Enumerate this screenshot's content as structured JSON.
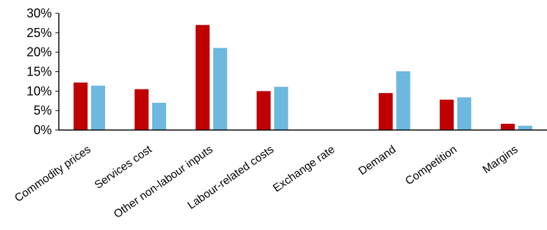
{
  "chart_data": {
    "type": "bar",
    "categories": [
      "Commodity prices",
      "Services cost",
      "Other non-labour inputs",
      "Labour-related costs",
      "Exchange rate",
      "Demand",
      "Competition",
      "Margins"
    ],
    "series": [
      {
        "color": "#c00000",
        "values": [
          12.2,
          10.5,
          27.0,
          10.0,
          0,
          9.5,
          7.8,
          1.6
        ]
      },
      {
        "color": "#6cb8de",
        "values": [
          11.4,
          7.0,
          21.1,
          11.1,
          0,
          15.1,
          8.4,
          1.1
        ]
      }
    ],
    "yticks": [
      "0%",
      "5%",
      "10%",
      "15%",
      "20%",
      "25%",
      "30%"
    ],
    "ylim": [
      0,
      30
    ],
    "grid": false,
    "legend": "none"
  }
}
